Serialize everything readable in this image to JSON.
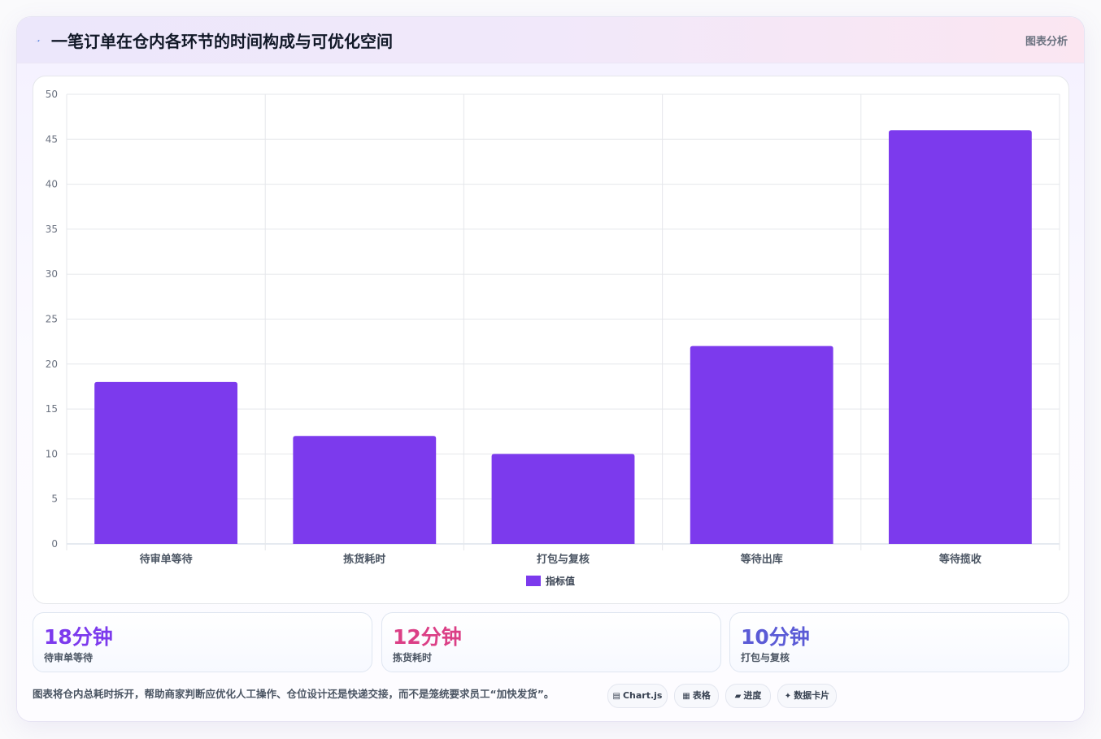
{
  "header": {
    "icon": "lightning-icon",
    "title": "一笔订单在仓内各环节的时间构成与可优化空间",
    "tag": "图表分析"
  },
  "chart_data": {
    "type": "bar",
    "categories": [
      "待审单等待",
      "拣货耗时",
      "打包与复核",
      "等待出库",
      "等待揽收"
    ],
    "series": [
      {
        "name": "指标值",
        "values": [
          18,
          12,
          10,
          22,
          46
        ],
        "color": "#7c3aed"
      }
    ],
    "ylim": [
      0,
      50
    ],
    "yticks": [
      0,
      5,
      10,
      15,
      20,
      25,
      30,
      35,
      40,
      45,
      50
    ],
    "grid": true,
    "legend": "bottom-center"
  },
  "stats": [
    {
      "value": "18分钟",
      "label": "待审单等待",
      "color": "#7c3aed"
    },
    {
      "value": "12分钟",
      "label": "拣货耗时",
      "color": "#db3f86"
    },
    {
      "value": "10分钟",
      "label": "打包与复核",
      "color": "#5b5bd6"
    }
  ],
  "footer": {
    "text": "图表将仓内总耗时拆开，帮助商家判断应优化人工操作、仓位设计还是快递交接，而不是笼统要求员工“加快发货”。",
    "pills": [
      {
        "icon": "chart-icon",
        "label": "Chart.js"
      },
      {
        "icon": "table-icon",
        "label": "表格"
      },
      {
        "icon": "progress-icon",
        "label": "进度"
      },
      {
        "icon": "sparkle-icon",
        "label": "数据卡片"
      }
    ]
  }
}
